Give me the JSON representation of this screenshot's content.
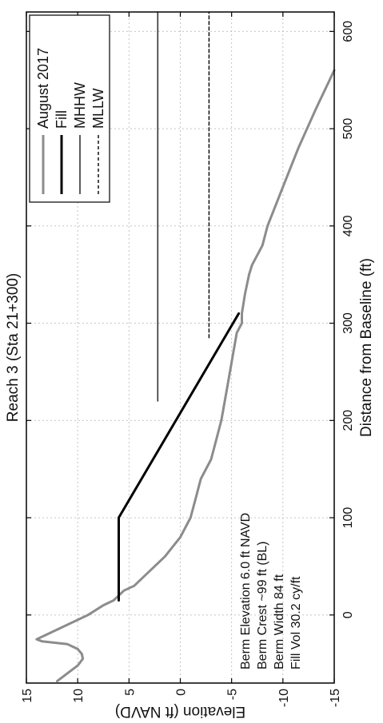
{
  "chart_data": {
    "type": "line",
    "title": "Reach 3 (Sta 21+300)",
    "xlabel": "Distance from Baseline (ft)",
    "ylabel": "Elevation (ft NAVD)",
    "xlim": [
      -70,
      620
    ],
    "ylim": [
      -15,
      15
    ],
    "x_ticks": [
      "0",
      "100",
      "200",
      "300",
      "400",
      "500",
      "600"
    ],
    "y_ticks": [
      "-15",
      "-10",
      "-5",
      "0",
      "5",
      "10",
      "15"
    ],
    "grid": true,
    "legend_position": "top-right",
    "series": [
      {
        "name": "August 2017",
        "color": "#8c8c8c",
        "style": "solid-thick",
        "x": [
          -68,
          -60,
          -52,
          -45,
          -40,
          -35,
          -30,
          -27,
          -25,
          -20,
          -10,
          0,
          10,
          15,
          20,
          25,
          30,
          40,
          60,
          80,
          100,
          120,
          140,
          160,
          180,
          200,
          230,
          260,
          290,
          300,
          310,
          330,
          350,
          360,
          370,
          380,
          400,
          440,
          480,
          520,
          560
        ],
        "y": [
          12,
          11,
          10,
          9.5,
          9.6,
          10,
          11,
          13.5,
          14,
          13,
          11,
          9,
          7.5,
          6.5,
          6,
          5.5,
          4.5,
          3.5,
          1.5,
          0,
          -1,
          -1.5,
          -2,
          -3,
          -3.5,
          -4,
          -4.5,
          -5,
          -5.5,
          -6,
          -6,
          -6.3,
          -6.7,
          -7,
          -7.5,
          -8,
          -8.5,
          -10,
          -11.5,
          -13.2,
          -15
        ]
      },
      {
        "name": "Fill",
        "color": "#000000",
        "style": "solid-thick",
        "x": [
          15,
          20,
          100,
          310
        ],
        "y": [
          6,
          6,
          6,
          -5.7
        ]
      },
      {
        "name": "MHHW",
        "color": "#333333",
        "style": "solid",
        "x": [
          220,
          620
        ],
        "y": [
          2.2,
          2.2
        ]
      },
      {
        "name": "MLLW",
        "color": "#000000",
        "style": "dashed",
        "x": [
          285,
          620
        ],
        "y": [
          -2.8,
          -2.8
        ]
      }
    ],
    "annotations": [
      "Berm Elevation 6.0 ft NAVD",
      "Berm Crest ~99 ft (BL)",
      "Berm Width 84 ft",
      "Fill  Vol 30.2 cy/ft"
    ]
  }
}
